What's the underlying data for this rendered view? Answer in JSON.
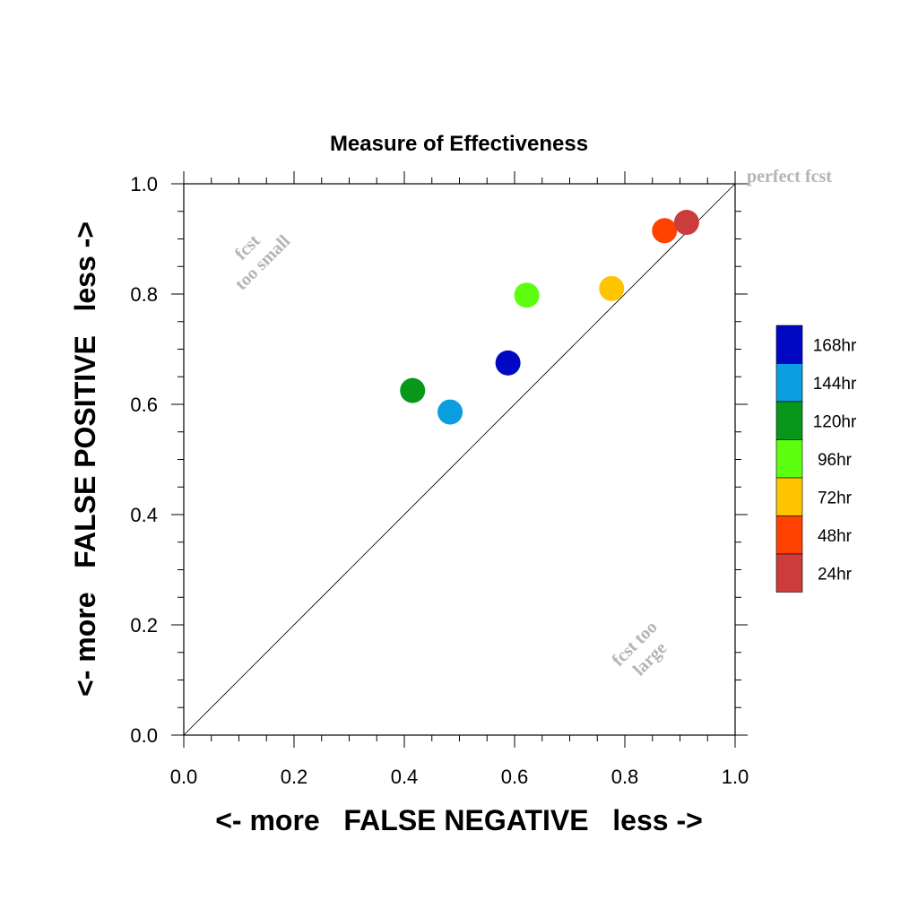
{
  "chart_data": {
    "type": "scatter",
    "title": "Measure of Effectiveness",
    "xlabel": "<- more   FALSE NEGATIVE   less ->",
    "ylabel": "<- more   FALSE POSITIVE   less ->",
    "xlim": [
      0.0,
      1.0
    ],
    "ylim": [
      0.0,
      1.0
    ],
    "x_ticks": [
      "0.0",
      "0.2",
      "0.4",
      "0.6",
      "0.8",
      "1.0"
    ],
    "y_ticks": [
      "0.0",
      "0.2",
      "0.4",
      "0.6",
      "0.8",
      "1.0"
    ],
    "grid": false,
    "reference_line": {
      "from": [
        0.0,
        0.0
      ],
      "to": [
        1.0,
        1.0
      ]
    },
    "annotations": {
      "perfect": "perfect fcst",
      "too_small_line1": "fcst",
      "too_small_line2": "too small",
      "too_large_line1": "fcst too",
      "too_large_line2": "large"
    },
    "legend_position": "right",
    "series": [
      {
        "name": "168hr",
        "color": "#0008c4",
        "x": 0.588,
        "y": 0.675
      },
      {
        "name": "144hr",
        "color": "#0a9ee0",
        "x": 0.483,
        "y": 0.586
      },
      {
        "name": "120hr",
        "color": "#07971b",
        "x": 0.415,
        "y": 0.625
      },
      {
        "name": "96hr",
        "color": "#5cff10",
        "x": 0.622,
        "y": 0.798
      },
      {
        "name": "72hr",
        "color": "#ffc400",
        "x": 0.776,
        "y": 0.81
      },
      {
        "name": "48hr",
        "color": "#ff4200",
        "x": 0.872,
        "y": 0.915
      },
      {
        "name": "24hr",
        "color": "#cc3c3c",
        "x": 0.912,
        "y": 0.93
      }
    ]
  }
}
